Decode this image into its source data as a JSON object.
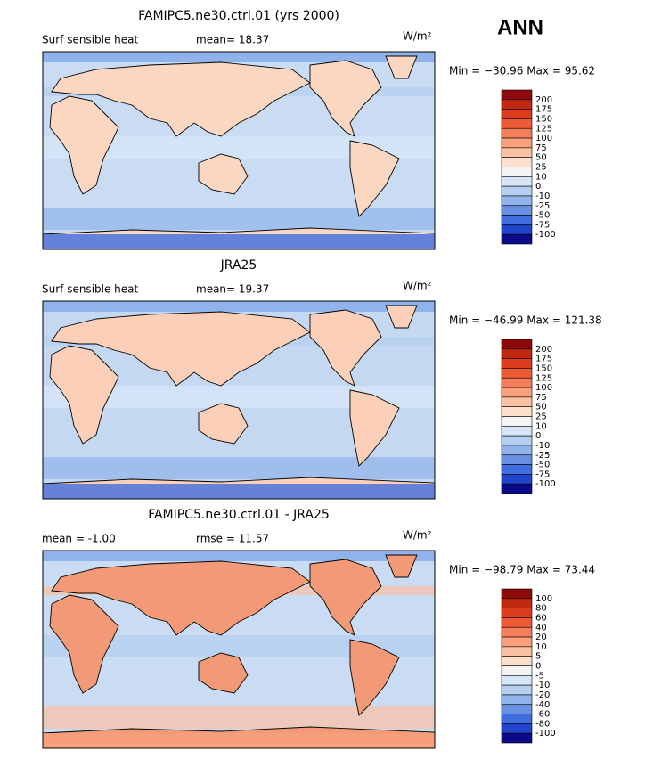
{
  "season": "ANN",
  "panels": [
    {
      "title": "FAMIPC5.ne30.ctrl.01 (yrs 2000)",
      "left_label": "Surf sensible heat",
      "center_label": "mean=  18.37",
      "units": "W/m²",
      "minmax": "Min = −30.96  Max =  95.62",
      "colorbar": {
        "levels": [
          200,
          175,
          150,
          125,
          100,
          75,
          50,
          25,
          10,
          0,
          -10,
          -25,
          -50,
          -75,
          -100
        ],
        "colors": [
          "#8c0a0a",
          "#c0290f",
          "#dd3c1c",
          "#ec5a36",
          "#f47e5a",
          "#f8a07c",
          "#fbc1a3",
          "#fde0cc",
          "#f4f4f4",
          "#d7e6f7",
          "#b5cff0",
          "#8fb3ea",
          "#6990e3",
          "#406de0",
          "#1f45cc",
          "#0a0a8a"
        ]
      }
    },
    {
      "title": "JRA25",
      "left_label": "Surf sensible heat",
      "center_label": "mean=  19.37",
      "units": "W/m²",
      "minmax": "Min = −46.99  Max = 121.38",
      "colorbar": {
        "levels": [
          200,
          175,
          150,
          125,
          100,
          75,
          50,
          25,
          10,
          0,
          -10,
          -25,
          -50,
          -75,
          -100
        ],
        "colors": [
          "#8c0a0a",
          "#c0290f",
          "#dd3c1c",
          "#ec5a36",
          "#f47e5a",
          "#f8a07c",
          "#fbc1a3",
          "#fde0cc",
          "#f4f4f4",
          "#d7e6f7",
          "#b5cff0",
          "#8fb3ea",
          "#6990e3",
          "#406de0",
          "#1f45cc",
          "#0a0a8a"
        ]
      }
    },
    {
      "title": "FAMIPC5.ne30.ctrl.01 - JRA25",
      "left_label": "mean =  -1.00",
      "center_label": "rmse =  11.57",
      "units": "W/m²",
      "minmax": "Min = −98.79  Max =  73.44",
      "colorbar": {
        "levels": [
          100,
          80,
          60,
          40,
          20,
          10,
          5,
          0,
          -5,
          -10,
          -20,
          -40,
          -60,
          -80,
          -100
        ],
        "colors": [
          "#8c0a0a",
          "#c0290f",
          "#dd3c1c",
          "#ec5a36",
          "#f47e5a",
          "#f8a07c",
          "#fbc1a3",
          "#fde0cc",
          "#f4f4f4",
          "#d7e6f7",
          "#b5cff0",
          "#8fb3ea",
          "#6990e3",
          "#406de0",
          "#1f45cc",
          "#0a0a8a"
        ]
      }
    }
  ]
}
